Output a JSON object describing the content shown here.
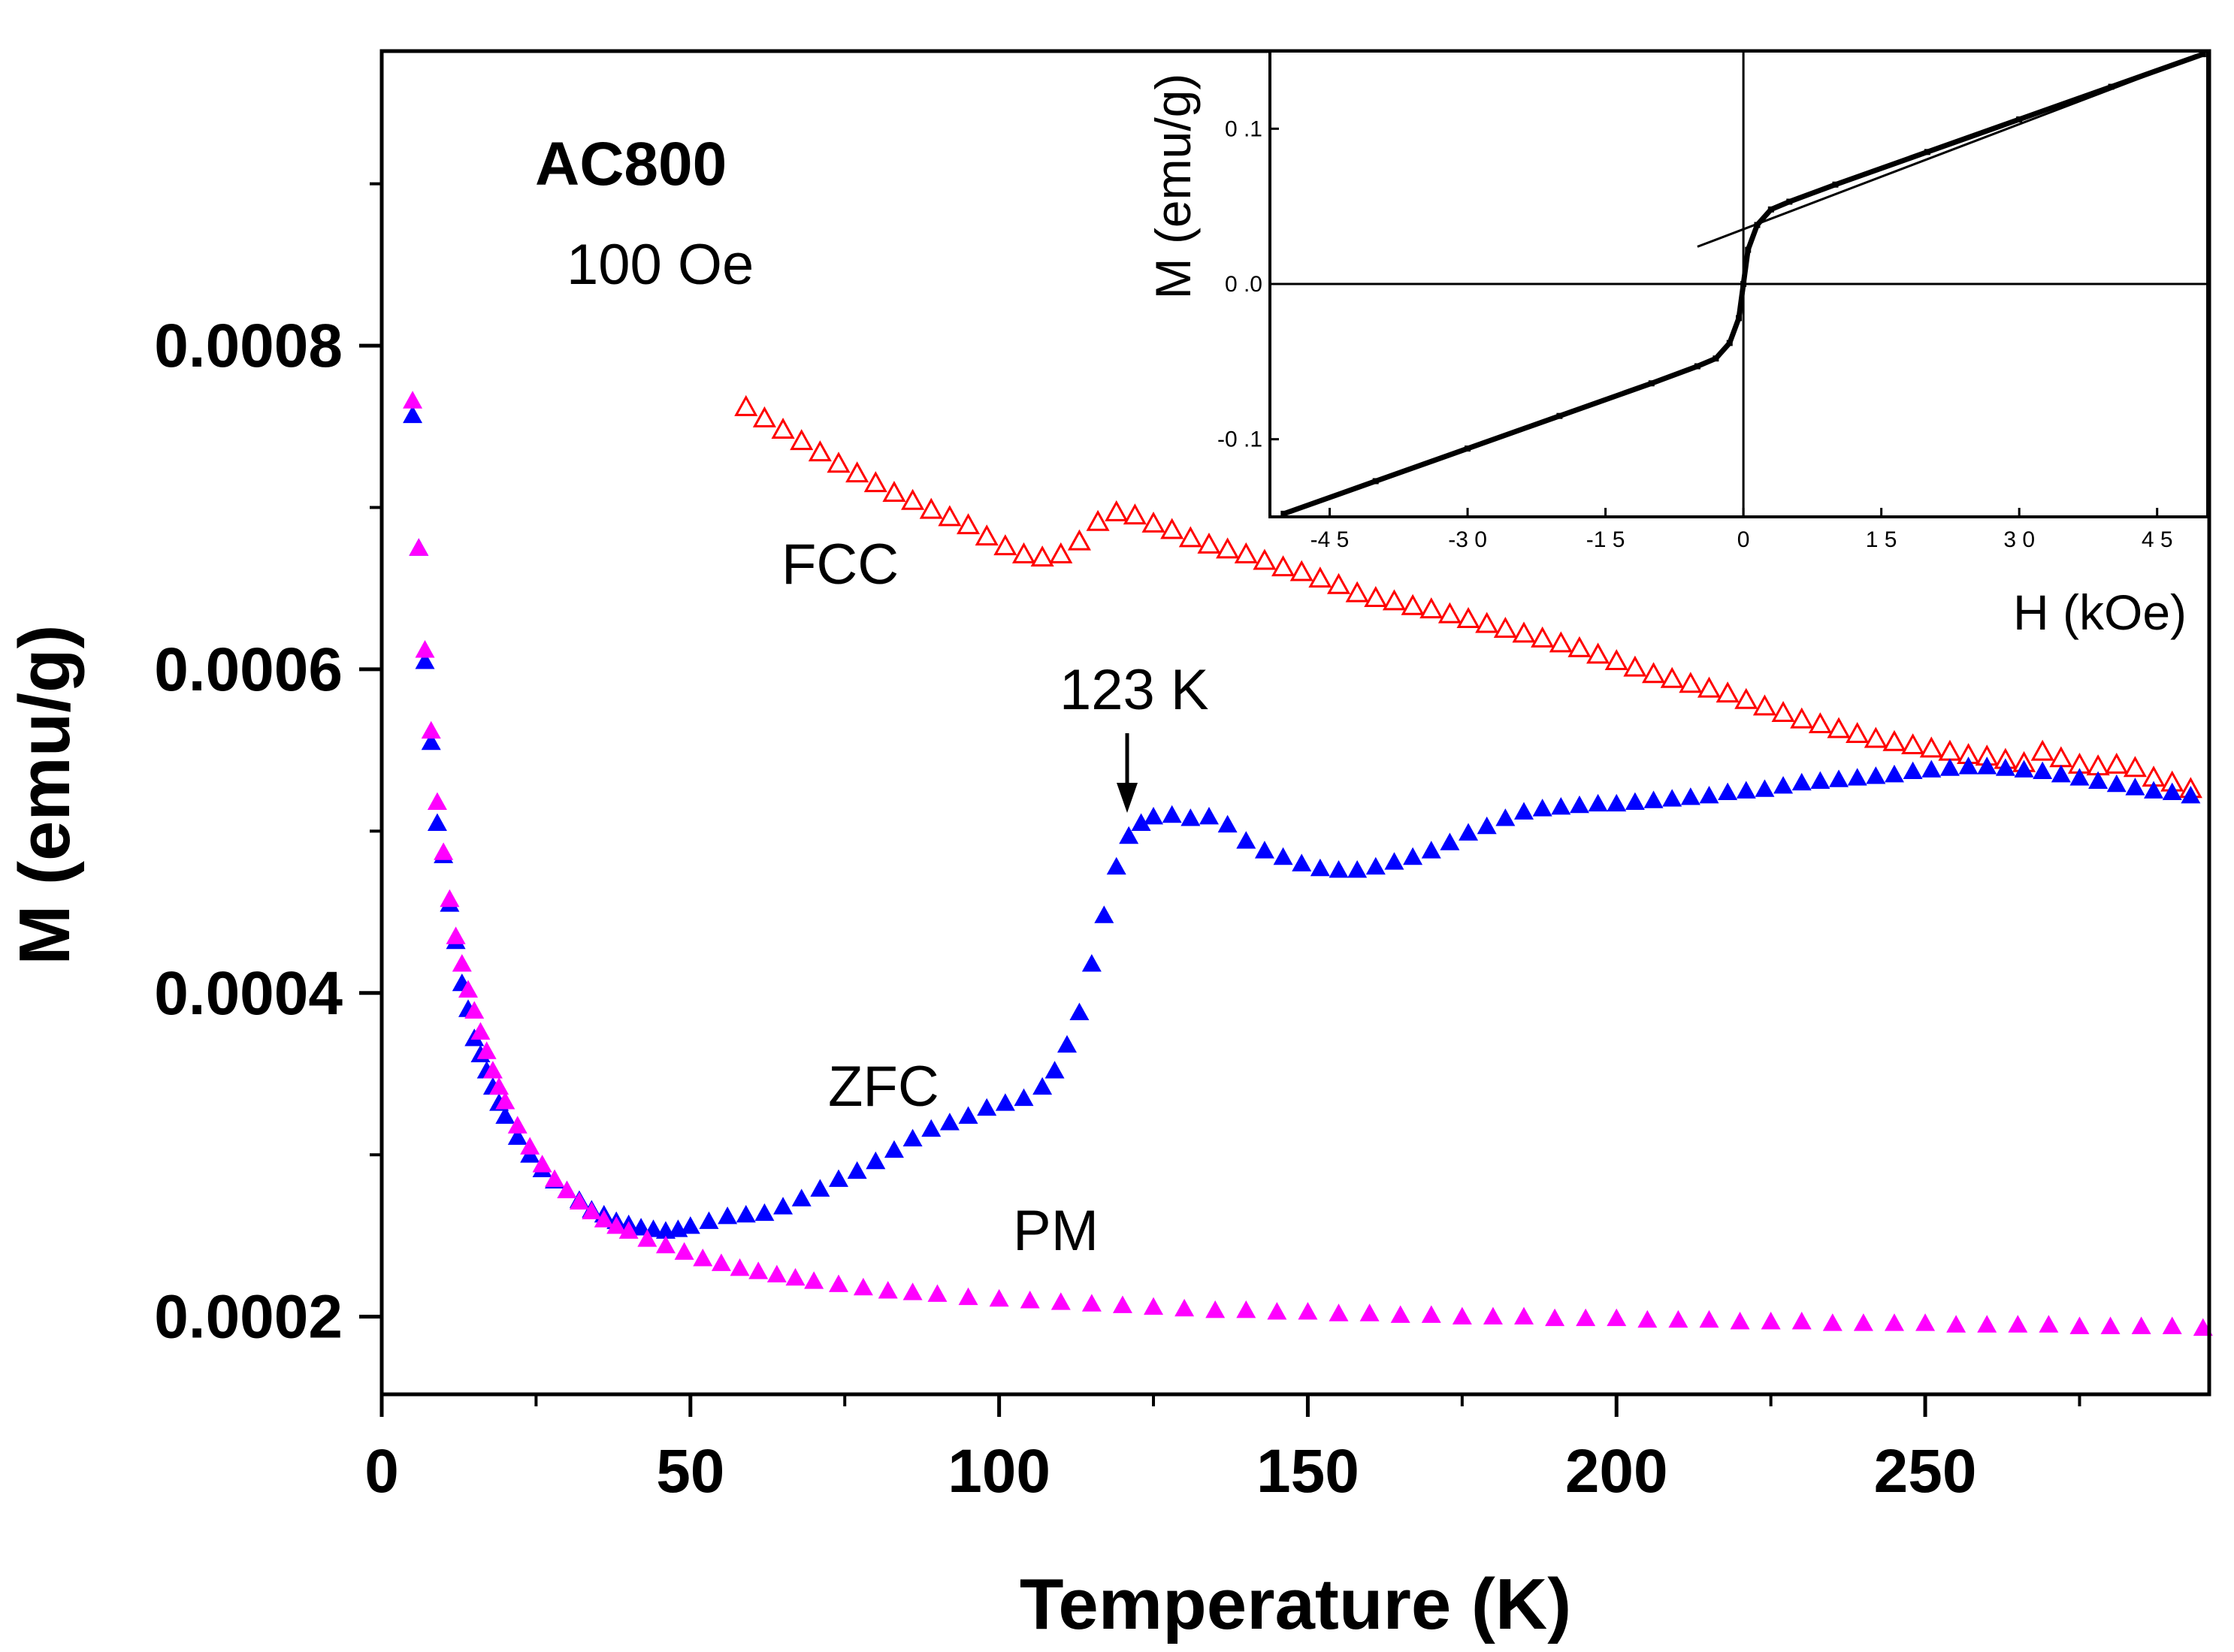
{
  "chart_data": [
    {
      "type": "scatter",
      "role": "main",
      "title": "",
      "xlabel": "Temperature (K)",
      "ylabel": "M (emu/g)",
      "xlim": [
        0,
        296
      ],
      "ylim": [
        0.000152,
        0.000982
      ],
      "xticks": [
        0,
        50,
        100,
        150,
        200,
        250
      ],
      "xtick_labels": [
        "0",
        "50",
        "100",
        "150",
        "200",
        "250"
      ],
      "xticks_minor": [
        25,
        75,
        125,
        175,
        225,
        275
      ],
      "yticks": [
        0.0002,
        0.0004,
        0.0006,
        0.0008
      ],
      "ytick_labels": [
        "0.0002",
        "0.0004",
        "0.0006",
        "0.0008"
      ],
      "yticks_minor": [
        0.0003,
        0.0005,
        0.0007,
        0.0009
      ],
      "grid": false,
      "annotations": {
        "sample": "AC800",
        "field": "100 Oe",
        "fcc_label": "FCC",
        "zfc_label": "ZFC",
        "pm_label": "PM",
        "transition": "123 K"
      },
      "series": [
        {
          "name": "FCC",
          "marker": "open-triangle",
          "color": "#ff0000",
          "x": [
            59,
            62,
            65,
            68,
            71,
            74,
            77,
            80,
            83,
            86,
            89,
            92,
            95,
            98,
            101,
            104,
            107,
            110,
            113,
            116,
            119,
            122,
            125,
            128,
            131,
            134,
            137,
            140,
            143,
            146,
            149,
            152,
            155,
            158,
            161,
            164,
            167,
            170,
            173,
            176,
            179,
            182,
            185,
            188,
            191,
            194,
            197,
            200,
            203,
            206,
            209,
            212,
            215,
            218,
            221,
            224,
            227,
            230,
            233,
            236,
            239,
            242,
            245,
            248,
            251,
            254,
            257,
            260,
            263,
            266,
            269,
            272,
            275,
            278,
            281,
            284,
            287,
            290,
            293
          ],
          "y": [
            0.000762,
            0.000755,
            0.000748,
            0.000741,
            0.000734,
            0.000727,
            0.000721,
            0.000715,
            0.000709,
            0.000704,
            0.0006985,
            0.000694,
            0.000689,
            0.000682,
            0.000676,
            0.000671,
            0.000669,
            0.000671,
            0.000679,
            0.000691,
            0.000697,
            0.000695,
            0.00069,
            0.000686,
            0.000681,
            0.000677,
            0.000674,
            0.000671,
            0.000667,
            0.000663,
            0.00066,
            0.000656,
            0.000652,
            0.000647,
            0.000644,
            0.000642,
            0.000639,
            0.000637,
            0.000634,
            0.000631,
            0.000628,
            0.000625,
            0.000622,
            0.000619,
            0.000616,
            0.000613,
            0.000609,
            0.000605,
            0.000601,
            0.000597,
            0.000594,
            0.000591,
            0.000588,
            0.000585,
            0.000581,
            0.000577,
            0.000573,
            0.000569,
            0.000566,
            0.000563,
            0.00056,
            0.000557,
            0.000555,
            0.000553,
            0.000551,
            0.000549,
            0.000547,
            0.000546,
            0.000544,
            0.000542,
            0.000549,
            0.000545,
            0.000541,
            0.00054,
            0.000541,
            0.000539,
            0.000533,
            0.00053,
            0.000526
          ]
        },
        {
          "name": "ZFC",
          "marker": "filled-triangle",
          "color": "#0000ff",
          "x": [
            5,
            6,
            7,
            8,
            9,
            10,
            11,
            12,
            13,
            14,
            15,
            16,
            17,
            18,
            19,
            20,
            22,
            24,
            26,
            28,
            30,
            32,
            34,
            36,
            38,
            40,
            42,
            44,
            46,
            48,
            50,
            53,
            56,
            59,
            62,
            65,
            68,
            71,
            74,
            77,
            80,
            83,
            86,
            89,
            92,
            95,
            98,
            101,
            104,
            107,
            109,
            111,
            113,
            115,
            117,
            119,
            121,
            123,
            125,
            128,
            131,
            134,
            137,
            140,
            143,
            146,
            149,
            152,
            155,
            158,
            161,
            164,
            167,
            170,
            173,
            176,
            179,
            182,
            185,
            188,
            191,
            194,
            197,
            200,
            203,
            206,
            209,
            212,
            215,
            218,
            221,
            224,
            227,
            230,
            233,
            236,
            239,
            242,
            245,
            248,
            251,
            254,
            257,
            260,
            263,
            266,
            269,
            272,
            275,
            278,
            281,
            284,
            287,
            290,
            293
          ],
          "y": [
            0.000757,
            0.000675,
            0.000605,
            0.000555,
            0.000505,
            0.000485,
            0.000455,
            0.000432,
            0.000406,
            0.00039,
            0.000372,
            0.000362,
            0.000352,
            0.000342,
            0.000332,
            0.000324,
            0.000311,
            0.0003,
            0.000291,
            0.000284,
            0.000278,
            0.000272,
            0.000266,
            0.000263,
            0.000259,
            0.000257,
            0.000255,
            0.000254,
            0.000253,
            0.000254,
            0.000256,
            0.000259,
            0.000262,
            0.000263,
            0.000264,
            0.000268,
            0.000273,
            0.000279,
            0.000285,
            0.00029,
            0.000296,
            0.000303,
            0.00031,
            0.000316,
            0.00032,
            0.000324,
            0.000329,
            0.000332,
            0.000335,
            0.000342,
            0.000352,
            0.000368,
            0.000388,
            0.000418,
            0.000448,
            0.000478,
            0.000497,
            0.000505,
            0.000509,
            0.00051,
            0.000508,
            0.000509,
            0.000504,
            0.000494,
            0.000488,
            0.000484,
            0.00048,
            0.000477,
            0.000476,
            0.000476,
            0.000478,
            0.000481,
            0.000484,
            0.000488,
            0.000493,
            0.000499,
            0.000503,
            0.000508,
            0.000512,
            0.000514,
            0.000515,
            0.000516,
            0.000517,
            0.000517,
            0.000518,
            0.000519,
            0.00052,
            0.000521,
            0.000522,
            0.000524,
            0.000525,
            0.000526,
            0.000528,
            0.00053,
            0.000531,
            0.000532,
            0.000533,
            0.000534,
            0.000535,
            0.000537,
            0.000538,
            0.000539,
            0.00054,
            0.00054,
            0.000539,
            0.000538,
            0.000537,
            0.000535,
            0.000533,
            0.000531,
            0.000529,
            0.000527,
            0.000525,
            0.000524,
            0.000522
          ]
        },
        {
          "name": "PM",
          "marker": "filled-triangle",
          "color": "#ff00ff",
          "x": [
            5,
            6,
            7,
            8,
            9,
            10,
            11,
            12,
            13,
            14,
            15,
            16,
            17,
            18,
            19,
            20,
            22,
            24,
            26,
            28,
            30,
            32,
            34,
            36,
            38,
            40,
            43,
            46,
            49,
            52,
            55,
            58,
            61,
            64,
            67,
            70,
            74,
            78,
            82,
            86,
            90,
            95,
            100,
            105,
            110,
            115,
            120,
            125,
            130,
            135,
            140,
            145,
            150,
            155,
            160,
            165,
            170,
            175,
            180,
            185,
            190,
            195,
            200,
            205,
            210,
            215,
            220,
            225,
            230,
            235,
            240,
            245,
            250,
            255,
            260,
            265,
            270,
            275,
            280,
            285,
            290,
            295
          ],
          "y": [
            0.000766,
            0.000675,
            0.000612,
            0.000562,
            0.000518,
            0.000487,
            0.000458,
            0.000435,
            0.000418,
            0.000402,
            0.000389,
            0.000376,
            0.000364,
            0.000352,
            0.000342,
            0.000333,
            0.000318,
            0.000305,
            0.000294,
            0.000285,
            0.000278,
            0.000271,
            0.000265,
            0.00026,
            0.000256,
            0.000253,
            0.000248,
            0.000244,
            0.00024,
            0.000236,
            0.000233,
            0.00023,
            0.000228,
            0.000226,
            0.000224,
            0.000222,
            0.00022,
            0.000218,
            0.000216,
            0.000215,
            0.000214,
            0.000212,
            0.000211,
            0.00021,
            0.000209,
            0.000208,
            0.000207,
            0.000206,
            0.000205,
            0.000204,
            0.000204,
            0.000203,
            0.000203,
            0.000202,
            0.000202,
            0.000201,
            0.000201,
            0.0002,
            0.0002,
            0.0002,
            0.000199,
            0.000199,
            0.000199,
            0.000198,
            0.000198,
            0.000198,
            0.000197,
            0.000197,
            0.000197,
            0.000196,
            0.000196,
            0.000196,
            0.000196,
            0.000195,
            0.000195,
            0.000195,
            0.000195,
            0.000194,
            0.000194,
            0.000194,
            0.000194,
            0.000193
          ]
        }
      ]
    },
    {
      "type": "line",
      "role": "inset",
      "xlabel": "H (kOe)",
      "ylabel": "M (emu/g)",
      "xlim": [
        -51.5,
        50.5
      ],
      "ylim": [
        -0.15,
        0.15
      ],
      "xticks": [
        -45,
        -30,
        -15,
        0,
        15,
        30,
        45
      ],
      "xtick_labels": [
        "-4 5",
        "-3 0",
        "-1 5",
        "0",
        "1 5",
        "3 0",
        "4 5"
      ],
      "yticks": [
        -0.1,
        0.0,
        0.1
      ],
      "ytick_labels": [
        "-0 .1",
        "0 .0",
        "0 .1"
      ],
      "grid": false,
      "series": [
        {
          "name": "M(H) loop",
          "color": "#000000",
          "x": [
            -50,
            -40,
            -30,
            -20,
            -10,
            -5,
            -3,
            -1.5,
            -0.5,
            0,
            0.5,
            1.5,
            3,
            5,
            10,
            20,
            30,
            40,
            50
          ],
          "y": [
            -0.148,
            -0.127,
            -0.106,
            -0.085,
            -0.064,
            -0.053,
            -0.048,
            -0.038,
            -0.022,
            0.0,
            0.022,
            0.038,
            0.048,
            0.053,
            0.064,
            0.085,
            0.106,
            0.127,
            0.148
          ]
        },
        {
          "name": "linear fit",
          "color": "#000000",
          "x": [
            -5,
            50
          ],
          "y": [
            0.024,
            0.148
          ]
        }
      ]
    }
  ]
}
